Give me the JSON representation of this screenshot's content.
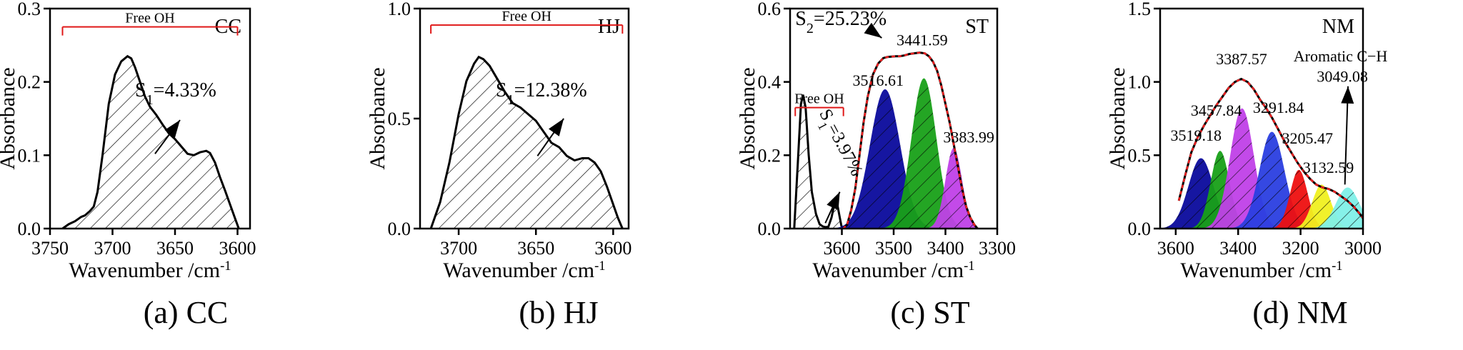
{
  "figure": {
    "captions": [
      "(a) CC",
      "(b) HJ",
      "(c) ST",
      "(d) NM"
    ]
  },
  "chart_data": [
    {
      "type": "area",
      "panel_label": "CC",
      "xlabel": "Wavenumber /cm",
      "xlabel_sup": "-1",
      "ylabel": "Absorbance",
      "xlim": [
        3750,
        3590
      ],
      "ylim": [
        0,
        0.3
      ],
      "xticks": [
        "3750",
        "3700",
        "3650",
        "3600"
      ],
      "xtick_values": [
        3750,
        3700,
        3650,
        3600
      ],
      "yticks": [
        "0.0",
        "0.1",
        "0.2",
        "0.3"
      ],
      "ytick_values": [
        0,
        0.1,
        0.2,
        0.3
      ],
      "spectrum": {
        "x": [
          3740,
          3735,
          3730,
          3725,
          3722,
          3718,
          3715,
          3712,
          3708,
          3703,
          3698,
          3693,
          3688,
          3685,
          3682,
          3678,
          3674,
          3670,
          3665,
          3660,
          3655,
          3650,
          3645,
          3640,
          3635,
          3630,
          3625,
          3622,
          3618,
          3614,
          3610,
          3606,
          3602,
          3599
        ],
        "y": [
          0.0,
          0.006,
          0.01,
          0.016,
          0.018,
          0.024,
          0.03,
          0.05,
          0.1,
          0.17,
          0.21,
          0.228,
          0.235,
          0.232,
          0.22,
          0.2,
          0.18,
          0.166,
          0.155,
          0.142,
          0.13,
          0.122,
          0.112,
          0.102,
          0.1,
          0.104,
          0.106,
          0.103,
          0.09,
          0.07,
          0.052,
          0.033,
          0.014,
          0.0
        ]
      },
      "free_oh_bracket": {
        "label": "Free OH",
        "from": 3740,
        "to": 3600,
        "level": 0.275
      },
      "area_annotation": {
        "base": "S",
        "sub": "1",
        "value": "=4.33%",
        "text_at": [
          3682,
          0.18
        ],
        "arrow_from": [
          3666,
          0.102
        ],
        "arrow_to": [
          3646,
          0.148
        ]
      }
    },
    {
      "type": "area",
      "panel_label": "HJ",
      "xlabel": "Wavenumber /cm",
      "xlabel_sup": "-1",
      "ylabel": "Absorbance",
      "xlim": [
        3725,
        3590
      ],
      "ylim": [
        0,
        1.0
      ],
      "xticks": [
        "3700",
        "3650",
        "3600"
      ],
      "xtick_values": [
        3700,
        3650,
        3600
      ],
      "yticks": [
        "0.0",
        "0.5",
        "1.0"
      ],
      "ytick_values": [
        0,
        0.5,
        1.0
      ],
      "spectrum": {
        "x": [
          3718,
          3712,
          3706,
          3700,
          3695,
          3690,
          3687,
          3684,
          3680,
          3675,
          3670,
          3665,
          3660,
          3655,
          3650,
          3645,
          3640,
          3635,
          3630,
          3625,
          3620,
          3616,
          3612,
          3608,
          3604,
          3600,
          3597,
          3594
        ],
        "y": [
          0.0,
          0.12,
          0.3,
          0.52,
          0.67,
          0.75,
          0.78,
          0.77,
          0.74,
          0.68,
          0.62,
          0.57,
          0.55,
          0.52,
          0.49,
          0.44,
          0.39,
          0.37,
          0.33,
          0.31,
          0.32,
          0.32,
          0.3,
          0.26,
          0.19,
          0.11,
          0.05,
          0.0
        ]
      },
      "free_oh_bracket": {
        "label": "Free OH",
        "from": 3718,
        "to": 3594,
        "level": 0.925
      },
      "area_annotation": {
        "base": "S",
        "sub": "1",
        "value": "=12.38%",
        "text_at": [
          3676,
          0.6
        ],
        "arrow_from": [
          3649,
          0.33
        ],
        "arrow_to": [
          3632,
          0.5
        ]
      }
    },
    {
      "type": "area",
      "panel_label": "ST",
      "xlabel": "Wavenumber /cm",
      "xlabel_sup": "-1",
      "ylabel": "Absorbance",
      "xlim": [
        3700,
        3300
      ],
      "ylim": [
        0,
        0.6
      ],
      "xticks": [
        "3600",
        "3500",
        "3400",
        "3300"
      ],
      "xtick_values": [
        3600,
        3500,
        3400,
        3300
      ],
      "yticks": [
        "0.0",
        "0.2",
        "0.4",
        "0.6"
      ],
      "ytick_values": [
        0,
        0.2,
        0.4,
        0.6
      ],
      "free_oh_curve": {
        "x": [
          3692,
          3685,
          3679,
          3675,
          3670,
          3664,
          3658,
          3650,
          3643,
          3637,
          3632,
          3626,
          3620,
          3614,
          3611,
          3608,
          3604,
          3601,
          3598
        ],
        "y": [
          0.0,
          0.18,
          0.34,
          0.365,
          0.33,
          0.2,
          0.1,
          0.04,
          0.012,
          0.006,
          0.004,
          0.005,
          0.03,
          0.07,
          0.075,
          0.06,
          0.03,
          0.008,
          0.0
        ]
      },
      "fit_peaks": [
        {
          "center": 3516.61,
          "height": 0.38,
          "sigma": 29,
          "color": "#0a0a9c"
        },
        {
          "center": 3441.59,
          "height": 0.41,
          "sigma": 24,
          "color": "#18a018"
        },
        {
          "center": 3383.99,
          "height": 0.22,
          "sigma": 16,
          "color": "#c040e8"
        }
      ],
      "envelope": {
        "x": [
          3598,
          3590,
          3582,
          3574,
          3566,
          3558,
          3550,
          3540,
          3530,
          3520,
          3512,
          3504,
          3496,
          3488,
          3480,
          3470,
          3460,
          3450,
          3440,
          3432,
          3424,
          3416,
          3408,
          3400,
          3392,
          3384,
          3376,
          3368,
          3360,
          3352,
          3344,
          3338
        ],
        "y": [
          0.0,
          0.01,
          0.05,
          0.11,
          0.2,
          0.29,
          0.36,
          0.42,
          0.45,
          0.465,
          0.468,
          0.469,
          0.47,
          0.47,
          0.472,
          0.476,
          0.478,
          0.48,
          0.478,
          0.47,
          0.455,
          0.43,
          0.39,
          0.34,
          0.29,
          0.23,
          0.17,
          0.11,
          0.06,
          0.03,
          0.01,
          0.0
        ]
      },
      "peak_labels": [
        {
          "text": "3516.61",
          "x": 3530,
          "y": 0.39
        },
        {
          "text": "3441.59",
          "x": 3445,
          "y": 0.5
        },
        {
          "text": "3383.99",
          "x": 3355,
          "y": 0.235
        }
      ],
      "free_oh_bracket": {
        "label": "Free OH",
        "from": 3690,
        "to": 3597,
        "level": 0.33
      },
      "annotations": [
        {
          "base": "S",
          "sub": "2",
          "value": "=25.23%",
          "text_at": [
            3690,
            0.555
          ],
          "arrow_from": [
            3548,
            0.545
          ],
          "arrow_to": [
            3523,
            0.52
          ]
        },
        {
          "base": "S",
          "sub": "1",
          "value": "=3.97%",
          "rotated": true,
          "text_at": [
            3644,
            0.315
          ],
          "arrow_from": [
            3632,
            0.015
          ],
          "arrow_to": [
            3604,
            0.1
          ]
        }
      ]
    },
    {
      "type": "area",
      "panel_label": "NM",
      "xlabel": "Wavenumber /cm",
      "xlabel_sup": "-1",
      "ylabel": "Absorbance",
      "xlim": [
        3650,
        3000
      ],
      "ylim": [
        0,
        1.5
      ],
      "xticks": [
        "3600",
        "3400",
        "3200",
        "3000"
      ],
      "xtick_values": [
        3600,
        3400,
        3200,
        3000
      ],
      "yticks": [
        "0.0",
        "0.5",
        "1.0",
        "1.5"
      ],
      "ytick_values": [
        0,
        0.5,
        1.0,
        1.5
      ],
      "fit_peaks": [
        {
          "center": 3519.18,
          "height": 0.48,
          "sigma": 40,
          "color": "#0a0a9c"
        },
        {
          "center": 3457.84,
          "height": 0.53,
          "sigma": 30,
          "color": "#18a018"
        },
        {
          "center": 3387.57,
          "height": 0.82,
          "sigma": 38,
          "color": "#c040e8"
        },
        {
          "center": 3291.84,
          "height": 0.66,
          "sigma": 40,
          "color": "#2a3ee0"
        },
        {
          "center": 3205.47,
          "height": 0.4,
          "sigma": 28,
          "color": "#ee1010"
        },
        {
          "center": 3132.59,
          "height": 0.3,
          "sigma": 30,
          "color": "#f0f020"
        },
        {
          "center": 3049.08,
          "height": 0.28,
          "sigma": 38,
          "color": "#80f0e8"
        }
      ],
      "envelope": {
        "x": [
          3590,
          3570,
          3550,
          3530,
          3510,
          3490,
          3470,
          3450,
          3430,
          3410,
          3390,
          3370,
          3350,
          3330,
          3310,
          3290,
          3270,
          3250,
          3230,
          3210,
          3190,
          3170,
          3150,
          3130,
          3110,
          3090,
          3070,
          3050,
          3030,
          3010,
          3000
        ],
        "y": [
          0.19,
          0.36,
          0.52,
          0.62,
          0.7,
          0.77,
          0.84,
          0.9,
          0.96,
          1.0,
          1.02,
          1.0,
          0.95,
          0.88,
          0.82,
          0.75,
          0.67,
          0.59,
          0.52,
          0.45,
          0.39,
          0.34,
          0.3,
          0.28,
          0.27,
          0.25,
          0.22,
          0.19,
          0.15,
          0.1,
          0.07
        ]
      },
      "peak_labels": [
        {
          "text": "3519.18",
          "x": 3535,
          "y": 0.6
        },
        {
          "text": "3457.84",
          "x": 3470,
          "y": 0.77
        },
        {
          "text": "3387.57",
          "x": 3389,
          "y": 1.12
        },
        {
          "text": "3291.84",
          "x": 3271,
          "y": 0.79
        },
        {
          "text": "3205.47",
          "x": 3178,
          "y": 0.58
        },
        {
          "text": "3132.59",
          "x": 3111,
          "y": 0.38
        },
        {
          "text": "3049.08",
          "x": 3066,
          "y": 1.0
        }
      ],
      "text_labels": [
        {
          "text": "Aromatic C−H",
          "x": 3072,
          "y": 1.14
        }
      ],
      "arrow": {
        "from": [
          3058,
          0.3
        ],
        "to": [
          3048,
          0.97
        ]
      }
    }
  ]
}
